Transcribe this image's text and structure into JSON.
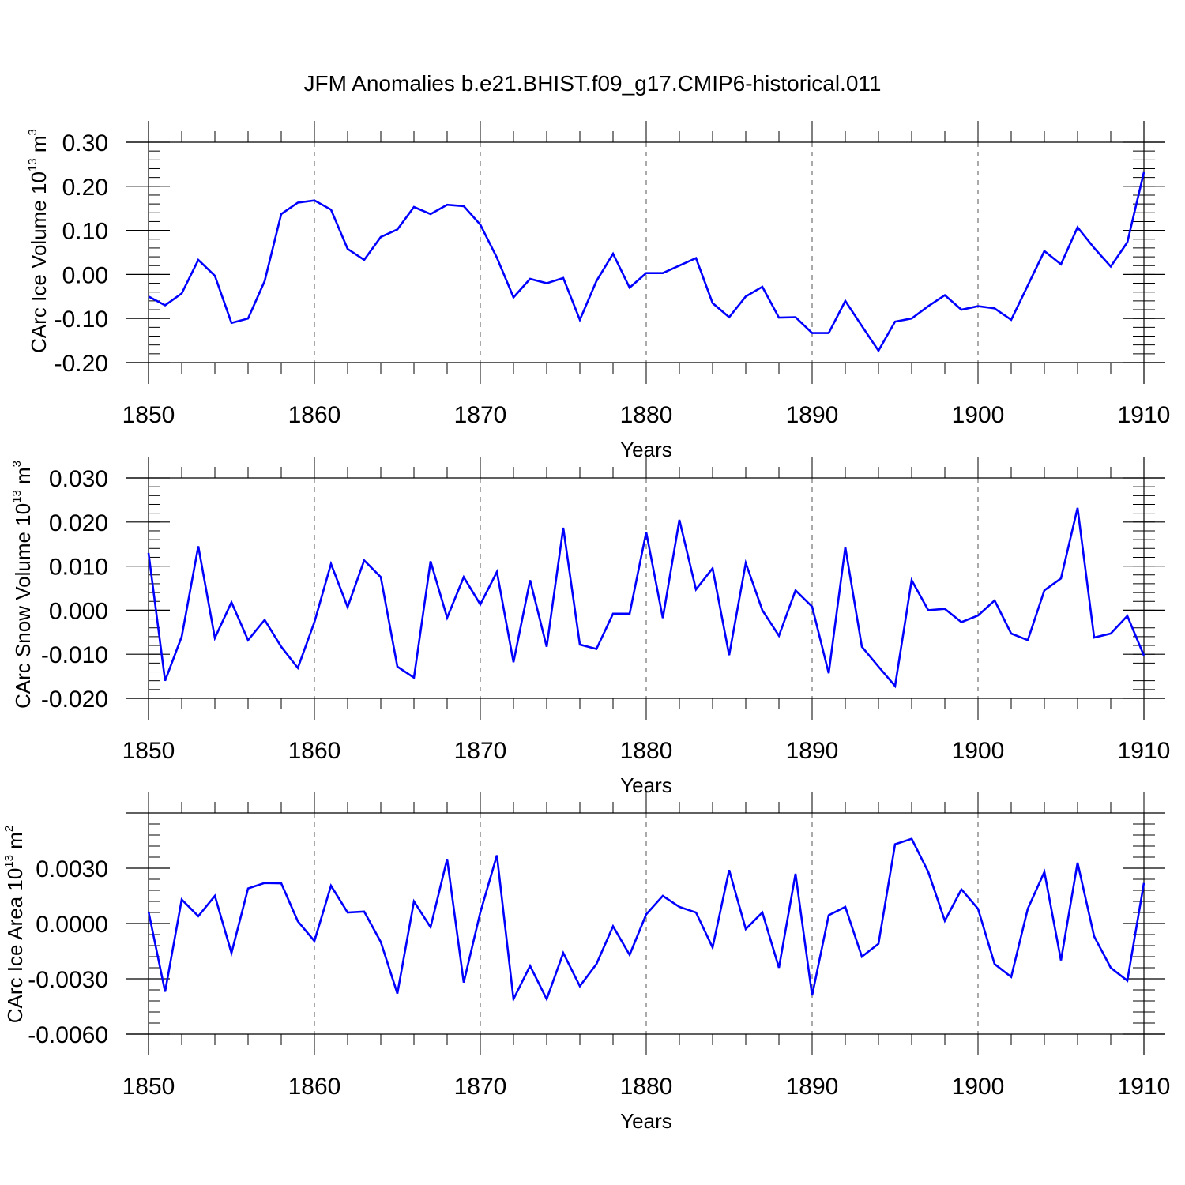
{
  "title": "JFM Anomalies b.e21.BHIST.f09_g17.CMIP6-historical.011",
  "chart_data": [
    {
      "type": "line",
      "xlabel": "Years",
      "ylabel": "CArc Ice Volume 10",
      "ylabel_exp": "13",
      "ylabel_unit": " m",
      "ylabel_unit_exp": "3",
      "xlim": [
        1850,
        1910
      ],
      "ylim": [
        -0.2,
        0.3
      ],
      "x_ticks": [
        1850,
        1860,
        1870,
        1880,
        1890,
        1900,
        1910
      ],
      "x_tick_labels": [
        "1850",
        "1860",
        "1870",
        "1880",
        "1890",
        "1900",
        "1910"
      ],
      "y_ticks": [
        -0.2,
        -0.1,
        0.0,
        0.1,
        0.2,
        0.3
      ],
      "y_tick_labels": [
        "-0.20",
        "-0.10",
        "0.00",
        "0.10",
        "0.20",
        "0.30"
      ],
      "y_minor_step": 0.02,
      "x_start": 1850,
      "series": [
        {
          "name": "CArc Ice Volume",
          "color": "#0000ff",
          "values": [
            -0.05,
            -0.07,
            -0.043,
            0.033,
            -0.003,
            -0.11,
            -0.1,
            -0.015,
            0.137,
            0.163,
            0.168,
            0.147,
            0.058,
            0.033,
            0.085,
            0.102,
            0.153,
            0.137,
            0.158,
            0.155,
            0.113,
            0.038,
            -0.052,
            -0.01,
            -0.02,
            -0.008,
            -0.103,
            -0.015,
            0.047,
            -0.03,
            0.003,
            0.003,
            0.02,
            0.037,
            -0.065,
            -0.097,
            -0.05,
            -0.028,
            -0.098,
            -0.097,
            -0.133,
            -0.133,
            -0.06,
            -0.117,
            -0.173,
            -0.107,
            -0.1,
            -0.072,
            -0.047,
            -0.08,
            -0.072,
            -0.077,
            -0.103,
            -0.025,
            0.053,
            0.023,
            0.107,
            0.06,
            0.018,
            0.073,
            0.232
          ]
        }
      ]
    },
    {
      "type": "line",
      "xlabel": "Years",
      "ylabel": "CArc Snow Volume 10",
      "ylabel_exp": "13",
      "ylabel_unit": " m",
      "ylabel_unit_exp": "3",
      "xlim": [
        1850,
        1910
      ],
      "ylim": [
        -0.02,
        0.03
      ],
      "x_ticks": [
        1850,
        1860,
        1870,
        1880,
        1890,
        1900,
        1910
      ],
      "x_tick_labels": [
        "1850",
        "1860",
        "1870",
        "1880",
        "1890",
        "1900",
        "1910"
      ],
      "y_ticks": [
        -0.02,
        -0.01,
        0.0,
        0.01,
        0.02,
        0.03
      ],
      "y_tick_labels": [
        "-0.020",
        "-0.010",
        "0.000",
        "0.010",
        "0.020",
        "0.030"
      ],
      "y_minor_step": 0.002,
      "x_start": 1850,
      "series": [
        {
          "name": "CArc Snow Volume",
          "color": "#0000ff",
          "values": [
            0.013,
            -0.016,
            -0.006,
            0.0145,
            -0.0063,
            0.0018,
            -0.0068,
            -0.0022,
            -0.0083,
            -0.0131,
            -0.0027,
            0.0105,
            0.0007,
            0.0113,
            0.0075,
            -0.0128,
            -0.0153,
            0.0111,
            -0.0017,
            0.0075,
            0.0013,
            0.0087,
            -0.0118,
            0.0068,
            -0.0083,
            0.0187,
            -0.0078,
            -0.0088,
            -0.0008,
            -0.0008,
            0.0177,
            -0.0018,
            0.0205,
            0.0047,
            0.0095,
            -0.0102,
            0.0107,
            0.0,
            -0.0058,
            0.0045,
            0.0008,
            -0.0143,
            0.0143,
            -0.0083,
            -0.0128,
            -0.0172,
            0.0068,
            0.0,
            0.0003,
            -0.0027,
            -0.0012,
            0.0022,
            -0.0053,
            -0.0068,
            0.0045,
            0.0072,
            0.0232,
            -0.0062,
            -0.0053,
            -0.0013,
            -0.0103
          ]
        }
      ]
    },
    {
      "type": "line",
      "xlabel": "Years",
      "ylabel": "CArc Ice Area 10",
      "ylabel_exp": "13",
      "ylabel_unit": " m",
      "ylabel_unit_exp": "2",
      "xlim": [
        1850,
        1910
      ],
      "ylim": [
        -0.006,
        0.006
      ],
      "x_ticks": [
        1850,
        1860,
        1870,
        1880,
        1890,
        1900,
        1910
      ],
      "x_tick_labels": [
        "1850",
        "1860",
        "1870",
        "1880",
        "1890",
        "1900",
        "1910"
      ],
      "y_ticks": [
        -0.006,
        -0.003,
        0.0,
        0.003
      ],
      "y_tick_labels": [
        "-0.0060",
        "-0.0030",
        "0.0000",
        "0.0030"
      ],
      "y_minor_step": 0.0006,
      "x_start": 1850,
      "series": [
        {
          "name": "CArc Ice Area",
          "color": "#0000ff",
          "values": [
            0.00065,
            -0.0037,
            0.0013,
            0.0004,
            0.0015,
            -0.0016,
            0.0019,
            0.0022,
            0.00218,
            0.00012,
            -0.00095,
            0.00205,
            0.0006,
            0.00065,
            -0.001,
            -0.0038,
            0.0012,
            -0.0002,
            0.0035,
            -0.0032,
            0.0006,
            0.0037,
            -0.0041,
            -0.0023,
            -0.0041,
            -0.0016,
            -0.0034,
            -0.0022,
            -0.00015,
            -0.0017,
            0.0005,
            0.0015,
            0.0009,
            0.0006,
            -0.0013,
            0.0029,
            -0.0003,
            0.0006,
            -0.0024,
            0.0027,
            -0.0039,
            0.00045,
            0.0009,
            -0.0018,
            -0.0011,
            0.0043,
            0.0046,
            0.0028,
            0.00015,
            0.00185,
            0.0008,
            -0.0022,
            -0.0029,
            0.0008,
            0.0028,
            -0.002,
            0.0033,
            -0.0007,
            -0.0024,
            -0.0031,
            0.0022
          ]
        }
      ]
    }
  ]
}
